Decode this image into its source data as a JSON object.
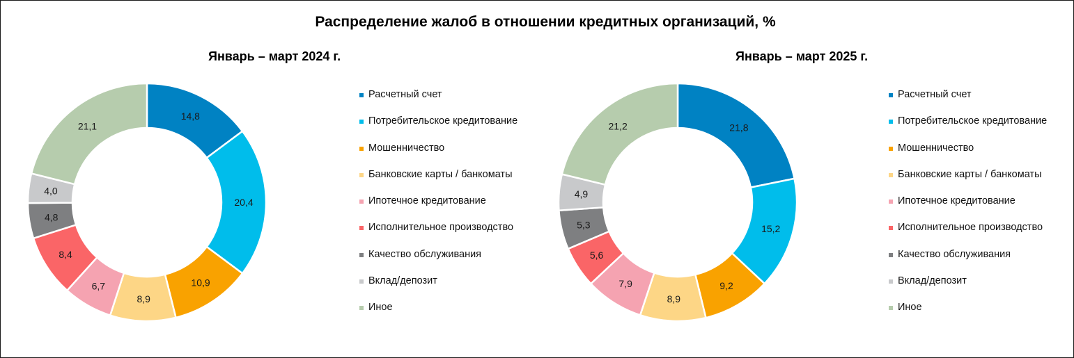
{
  "title": "Распределение жалоб в отношении кредитных организаций, %",
  "categories": [
    {
      "label": "Расчетный счет",
      "color": "#0082C3"
    },
    {
      "label": "Потребительское кредитование",
      "color": "#00BDEB"
    },
    {
      "label": "Мошенничество",
      "color": "#F9A200"
    },
    {
      "label": "Банковские карты / банкоматы",
      "color": "#FDD686"
    },
    {
      "label": "Ипотечное кредитование",
      "color": "#F5A3B1"
    },
    {
      "label": "Исполнительное производство",
      "color": "#FA6567"
    },
    {
      "label": "Качество обслуживания",
      "color": "#7E7F81"
    },
    {
      "label": "Вклад/депозит",
      "color": "#C8C9CB"
    },
    {
      "label": "Иное",
      "color": "#B6CCAD"
    }
  ],
  "chart_data": [
    {
      "type": "pie",
      "title": "Январь – март 2024 г.",
      "categories": [
        "Расчетный счет",
        "Потребительское кредитование",
        "Мошенничество",
        "Банковские карты / банкоматы",
        "Ипотечное кредитование",
        "Исполнительное производство",
        "Качество обслуживания",
        "Вклад/депозит",
        "Иное"
      ],
      "values": [
        14.8,
        20.4,
        10.9,
        8.9,
        6.7,
        8.4,
        4.8,
        4.0,
        21.1
      ],
      "value_labels": [
        "14,8",
        "20,4",
        "10,9",
        "8,9",
        "6,7",
        "8,4",
        "4,8",
        "4,0",
        "21,1"
      ],
      "legend": "right"
    },
    {
      "type": "pie",
      "title": "Январь – март 2025 г.",
      "categories": [
        "Расчетный счет",
        "Потребительское кредитование",
        "Мошенничество",
        "Банковские карты / банкоматы",
        "Ипотечное кредитование",
        "Исполнительное производство",
        "Качество обслуживания",
        "Вклад/депозит",
        "Иное"
      ],
      "values": [
        21.8,
        15.2,
        9.2,
        8.9,
        7.9,
        5.6,
        5.3,
        4.9,
        21.2
      ],
      "value_labels": [
        "21,8",
        "15,2",
        "9,2",
        "8,9",
        "7,9",
        "5,6",
        "5,3",
        "4,9",
        "21,2"
      ],
      "legend": "right"
    }
  ]
}
